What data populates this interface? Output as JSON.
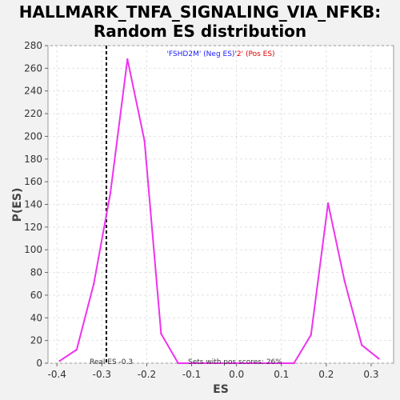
{
  "chart_data": {
    "type": "line",
    "title_line1": "HALLMARK_TNFA_SIGNALING_VIA_NFKB:",
    "title_line2": "Random ES distribution",
    "xlabel": "ES",
    "ylabel": "P(ES)",
    "xlim": [
      -0.42,
      0.35
    ],
    "ylim": [
      0,
      280
    ],
    "xticks": [
      -0.4,
      -0.3,
      -0.2,
      -0.1,
      0.0,
      0.1,
      0.2,
      0.3
    ],
    "xtick_labels": [
      "-0.4",
      "-0.3",
      "-0.2",
      "-0.1",
      "0.0",
      "0.1",
      "0.2",
      "0.3"
    ],
    "yticks": [
      0,
      20,
      40,
      60,
      80,
      100,
      120,
      140,
      160,
      180,
      200,
      220,
      240,
      260,
      280
    ],
    "ytick_labels": [
      "0",
      "20",
      "40",
      "60",
      "80",
      "100",
      "120",
      "140",
      "160",
      "180",
      "200",
      "220",
      "240",
      "260",
      "280"
    ],
    "grid": true,
    "series": [
      {
        "color": "#ee33ee",
        "x": [
          -0.394,
          -0.356,
          -0.318,
          -0.281,
          -0.243,
          -0.205,
          -0.168,
          -0.13,
          0.128,
          0.166,
          0.204,
          0.241,
          0.279,
          0.317
        ],
        "y": [
          2,
          12,
          70,
          150,
          268,
          196,
          26,
          0,
          0,
          25,
          141,
          72,
          16,
          4
        ]
      }
    ],
    "real_es": -0.29,
    "annotations": {
      "real_es": "Real ES -0.3",
      "pos_scores": "Sets with pos scores: 26%"
    },
    "legend": {
      "neg": "'FSHD2M' (Neg ES)",
      "pos": "'2' (Pos ES)"
    }
  }
}
